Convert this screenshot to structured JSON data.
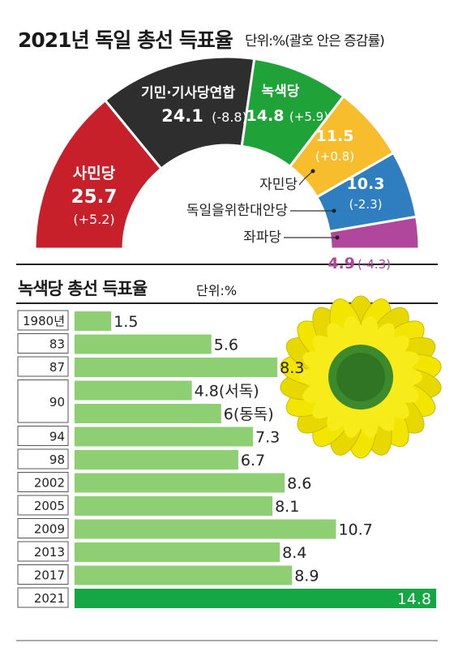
{
  "semi_chart": {
    "title": "2021년 독일 총선 득표율",
    "unit_note": "단위:%(괄호 안은 증감률)"
  },
  "bar_chart": {
    "title": "녹색당 총선 득표율",
    "unit_note": "단위:%"
  },
  "colors": {
    "spd": "#c8202a",
    "cdu": "#2e2e2e",
    "greens": "#1fa339",
    "fdp": "#f7bd2c",
    "afd": "#2f7fc0",
    "left": "#b0479c",
    "bar": "#8fcf74",
    "bar_latest": "#15a743"
  },
  "chart_data": [
    {
      "type": "pie",
      "title": "2021년 독일 총선 득표율",
      "unit": "단위:%(괄호 안은 증감률)",
      "slices": [
        {
          "label": "사민당",
          "value": 25.7,
          "value_text": "25.7",
          "change": "(+5.2)",
          "color": "#c8202a"
        },
        {
          "label": "기민·기사당연합",
          "value": 24.1,
          "value_text": "24.1",
          "change": "(-8.8)",
          "color": "#2e2e2e"
        },
        {
          "label": "녹색당",
          "value": 14.8,
          "value_text": "14.8",
          "change": "(+5.9)",
          "color": "#1fa339"
        },
        {
          "label": "자민당",
          "value": 11.5,
          "value_text": "11.5",
          "change": "(+0.8)",
          "color": "#f7bd2c"
        },
        {
          "label": "독일을위한대안당",
          "value": 10.3,
          "value_text": "10.3",
          "change": "(-2.3)",
          "color": "#2f7fc0"
        },
        {
          "label": "좌파당",
          "value": 4.9,
          "value_text": "4.9",
          "change": "(-4.3)",
          "color": "#b0479c"
        }
      ]
    },
    {
      "type": "bar",
      "orientation": "horizontal",
      "title": "녹색당 총선 득표율",
      "unit": "단위:%",
      "xlim": [
        0,
        15
      ],
      "rows": [
        {
          "label": "1980년",
          "value": 1.5,
          "value_text": "1.5"
        },
        {
          "label": "83",
          "value": 5.6,
          "value_text": "5.6"
        },
        {
          "label": "87",
          "value": 8.3,
          "value_text": "8.3"
        },
        {
          "label": "90",
          "value": 4.8,
          "value_text": "4.8(서독)"
        },
        {
          "label": "",
          "value": 6.0,
          "value_text": "6(동독)"
        },
        {
          "label": "94",
          "value": 7.3,
          "value_text": "7.3"
        },
        {
          "label": "98",
          "value": 6.7,
          "value_text": "6.7"
        },
        {
          "label": "2002",
          "value": 8.6,
          "value_text": "8.6"
        },
        {
          "label": "2005",
          "value": 8.1,
          "value_text": "8.1"
        },
        {
          "label": "2009",
          "value": 10.7,
          "value_text": "10.7"
        },
        {
          "label": "2013",
          "value": 8.4,
          "value_text": "8.4"
        },
        {
          "label": "2017",
          "value": 8.9,
          "value_text": "8.9"
        },
        {
          "label": "2021",
          "value": 14.8,
          "value_text": "14.8"
        }
      ]
    }
  ]
}
